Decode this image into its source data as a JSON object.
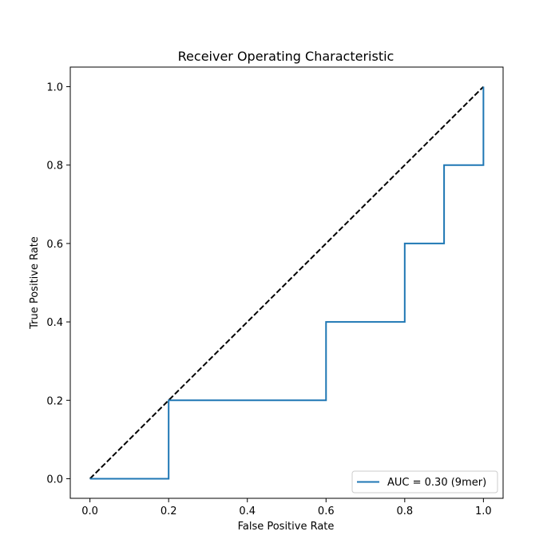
{
  "chart_data": {
    "type": "line",
    "title": "Receiver Operating Characteristic",
    "xlabel": "False Positive Rate",
    "ylabel": "True Positive Rate",
    "xlim": [
      -0.05,
      1.05
    ],
    "ylim": [
      -0.05,
      1.05
    ],
    "x_ticks": [
      0.0,
      0.2,
      0.4,
      0.6,
      0.8,
      1.0
    ],
    "y_ticks": [
      0.0,
      0.2,
      0.4,
      0.6,
      0.8,
      1.0
    ],
    "x_tick_labels": [
      "0.0",
      "0.2",
      "0.4",
      "0.6",
      "0.8",
      "1.0"
    ],
    "y_tick_labels": [
      "0.0",
      "0.2",
      "0.4",
      "0.6",
      "0.8",
      "1.0"
    ],
    "grid": false,
    "legend_position": "lower-right",
    "series": [
      {
        "name": "AUC = 0.30 (9mer)",
        "color": "#1f77b4",
        "style": "step",
        "x": [
          0.0,
          0.2,
          0.2,
          0.6,
          0.6,
          0.8,
          0.8,
          0.9,
          0.9,
          1.0,
          1.0
        ],
        "y": [
          0.0,
          0.0,
          0.2,
          0.2,
          0.4,
          0.4,
          0.6,
          0.6,
          0.8,
          0.8,
          1.0
        ]
      }
    ],
    "reference_line": {
      "color": "#000000",
      "style": "dashed",
      "x": [
        0.0,
        1.0
      ],
      "y": [
        0.0,
        1.0
      ]
    }
  }
}
